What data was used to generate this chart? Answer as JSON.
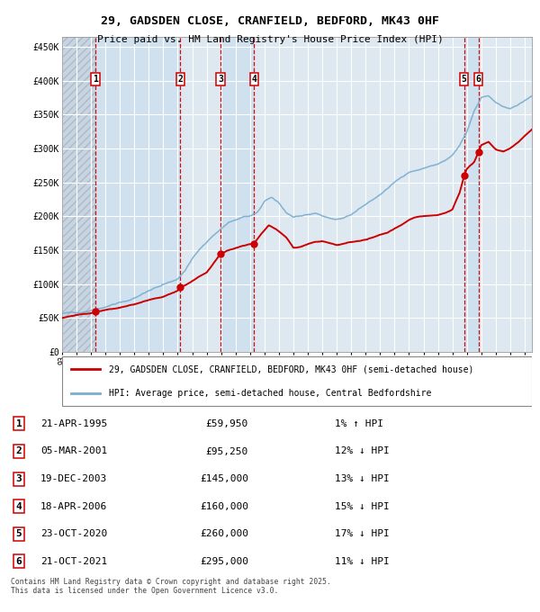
{
  "title": "29, GADSDEN CLOSE, CRANFIELD, BEDFORD, MK43 0HF",
  "subtitle": "Price paid vs. HM Land Registry's House Price Index (HPI)",
  "legend_line1": "29, GADSDEN CLOSE, CRANFIELD, BEDFORD, MK43 0HF (semi-detached house)",
  "legend_line2": "HPI: Average price, semi-detached house, Central Bedfordshire",
  "footer1": "Contains HM Land Registry data © Crown copyright and database right 2025.",
  "footer2": "This data is licensed under the Open Government Licence v3.0.",
  "transactions": [
    {
      "num": 1,
      "date": "21-APR-1995",
      "price": 59950,
      "pct": "1%",
      "dir": "↑",
      "year_x": 1995.31
    },
    {
      "num": 2,
      "date": "05-MAR-2001",
      "price": 95250,
      "pct": "12%",
      "dir": "↓",
      "year_x": 2001.17
    },
    {
      "num": 3,
      "date": "19-DEC-2003",
      "price": 145000,
      "pct": "13%",
      "dir": "↓",
      "year_x": 2003.96
    },
    {
      "num": 4,
      "date": "18-APR-2006",
      "price": 160000,
      "pct": "15%",
      "dir": "↓",
      "year_x": 2006.29
    },
    {
      "num": 5,
      "date": "23-OCT-2020",
      "price": 260000,
      "pct": "17%",
      "dir": "↓",
      "year_x": 2020.81
    },
    {
      "num": 6,
      "date": "21-OCT-2021",
      "price": 295000,
      "pct": "11%",
      "dir": "↓",
      "year_x": 2021.81
    }
  ],
  "ylim": [
    0,
    465000
  ],
  "xlim": [
    1993.0,
    2025.5
  ],
  "yticks": [
    0,
    50000,
    100000,
    150000,
    200000,
    250000,
    300000,
    350000,
    400000,
    450000
  ],
  "ytick_labels": [
    "£0",
    "£50K",
    "£100K",
    "£150K",
    "£200K",
    "£250K",
    "£300K",
    "£350K",
    "£400K",
    "£450K"
  ],
  "red_color": "#cc0000",
  "blue_color": "#7aadcf",
  "bg_color": "#dde8f0",
  "grid_color": "#ffffff",
  "vline_color": "#cc0000",
  "highlight_color": "#cfe0ee",
  "hatch_bg": "#c8d5e0"
}
